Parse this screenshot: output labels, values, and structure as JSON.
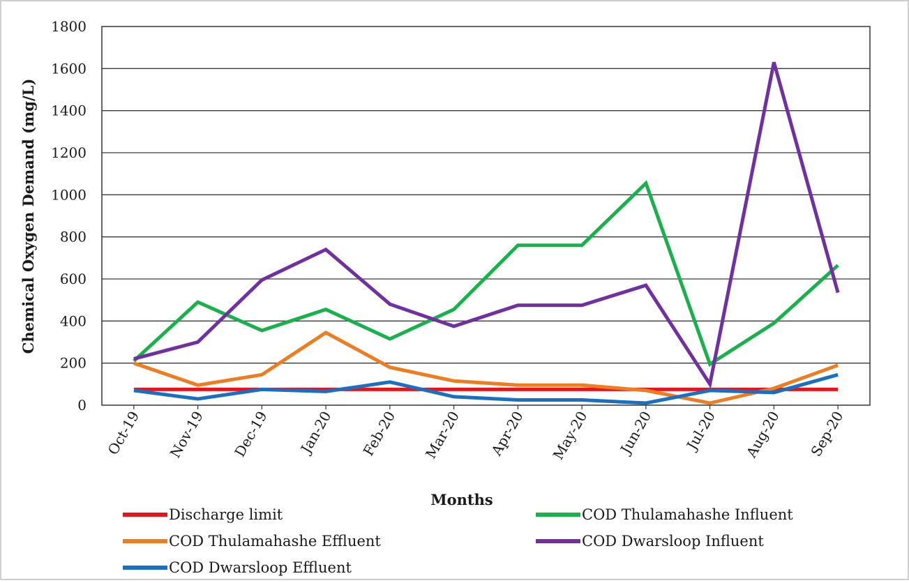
{
  "chart_data": {
    "type": "line",
    "title": "",
    "xlabel": "Months",
    "ylabel": "Chemical Oxygen Demand (mg/L)",
    "ylim": [
      0,
      1800
    ],
    "yticks": [
      0,
      200,
      400,
      600,
      800,
      1000,
      1200,
      1400,
      1600,
      1800
    ],
    "grid": "horizontal",
    "legend_position": "bottom",
    "categories": [
      "Oct-19",
      "Nov-19",
      "Dec-19",
      "Jan-20",
      "Feb-20",
      "Mar-20",
      "Apr-20",
      "May-20",
      "Jun-20",
      "Jul-20",
      "Aug-20",
      "Sep-20"
    ],
    "series": [
      {
        "name": "Discharge limit",
        "color": "#e8141b",
        "values": [
          75,
          75,
          75,
          75,
          75,
          75,
          75,
          75,
          75,
          75,
          75,
          75
        ]
      },
      {
        "name": "COD  Thulamahashe Influent",
        "color": "#19b14c",
        "values": [
          210,
          490,
          355,
          455,
          315,
          455,
          760,
          760,
          1055,
          195,
          390,
          665
        ]
      },
      {
        "name": "COD  Thulamahashe Effluent",
        "color": "#ee7d22",
        "values": [
          200,
          95,
          145,
          345,
          180,
          115,
          95,
          95,
          70,
          10,
          80,
          190
        ]
      },
      {
        "name": "COD  Dwarsloop Influent",
        "color": "#7030a0",
        "values": [
          220,
          300,
          595,
          740,
          480,
          375,
          475,
          475,
          570,
          100,
          1630,
          535
        ]
      },
      {
        "name": "COD  Dwarsloop Effluent",
        "color": "#1a70c0",
        "values": [
          70,
          30,
          75,
          65,
          110,
          40,
          25,
          25,
          10,
          70,
          60,
          145
        ]
      }
    ]
  }
}
